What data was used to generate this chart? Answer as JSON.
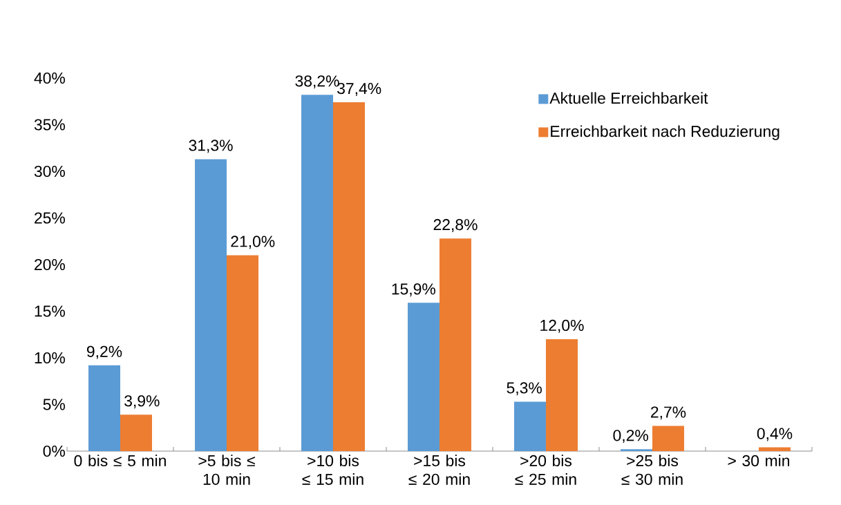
{
  "chart_data": {
    "type": "bar",
    "categories": [
      "0 bis ≤ 5 min",
      ">5 bis ≤ 10 min",
      ">10 bis ≤ 15 min",
      ">15 bis ≤ 20 min",
      ">20 bis ≤ 25 min",
      ">25 bis ≤ 30 min",
      "> 30 min"
    ],
    "series": [
      {
        "name": "Aktuelle Erreichbarkeit",
        "color": "#5b9bd5",
        "values": [
          9.2,
          31.3,
          38.2,
          15.9,
          5.3,
          0.2,
          null
        ],
        "value_labels": [
          "9,2%",
          "31,3%",
          "38,2%",
          "15,9%",
          "5,3%",
          "0,2%",
          null
        ]
      },
      {
        "name": "Erreichbarkeit nach Reduzierung",
        "color": "#ed7d31",
        "values": [
          3.9,
          21.0,
          37.4,
          22.8,
          12.0,
          2.7,
          0.4
        ],
        "value_labels": [
          "3,9%",
          "21,0%",
          "37,4%",
          "22,8%",
          "12,0%",
          "2,7%",
          "0,4%"
        ]
      }
    ],
    "ylim": [
      0,
      40
    ],
    "yticks": [
      {
        "value": 0,
        "label": "0%"
      },
      {
        "value": 5,
        "label": "5%"
      },
      {
        "value": 10,
        "label": "10%"
      },
      {
        "value": 15,
        "label": "15%"
      },
      {
        "value": 20,
        "label": "20%"
      },
      {
        "value": 25,
        "label": "25%"
      },
      {
        "value": 30,
        "label": "30%"
      },
      {
        "value": 35,
        "label": "35%"
      },
      {
        "value": 40,
        "label": "40%"
      }
    ],
    "legend": "top right"
  }
}
